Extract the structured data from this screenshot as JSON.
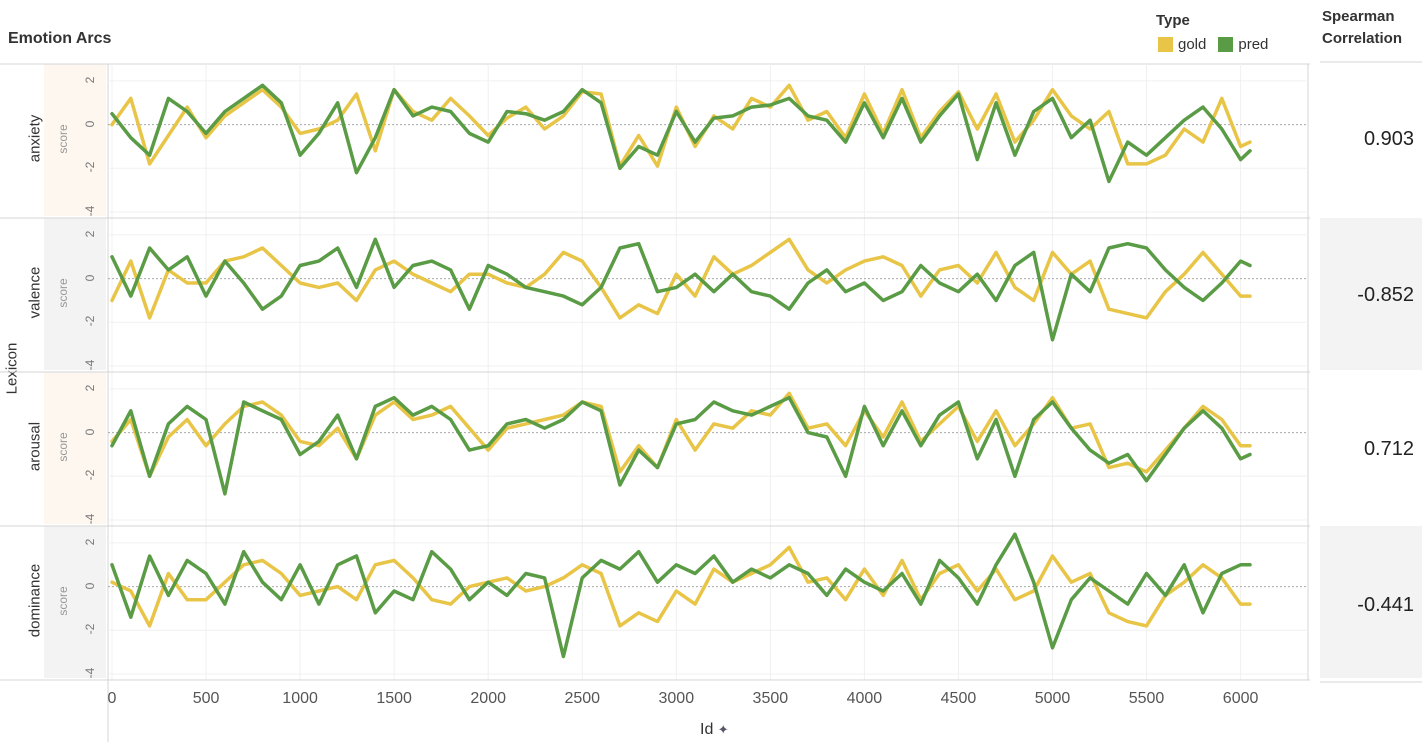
{
  "title": "Emotion Arcs",
  "legend": {
    "title": "Type",
    "items": [
      {
        "label": "gold",
        "color": "#e8c547"
      },
      {
        "label": "pred",
        "color": "#5a9b45"
      }
    ]
  },
  "correlation_header": "Spearman Correlation",
  "row_axis_label": "Lexicon",
  "y_axis_label": "score",
  "x_axis_label": "Id",
  "x_ticks": [
    "0",
    "500",
    "1000",
    "1500",
    "2000",
    "2500",
    "3000",
    "3500",
    "4000",
    "4500",
    "5000",
    "5500",
    "6000"
  ],
  "y_ticks": [
    "2",
    "0",
    "-2",
    "-4"
  ],
  "rows": [
    {
      "name": "anxiety",
      "correlation": "0.903"
    },
    {
      "name": "valence",
      "correlation": "-0.852"
    },
    {
      "name": "arousal",
      "correlation": "0.712"
    },
    {
      "name": "dominance",
      "correlation": "-0.441"
    }
  ],
  "chart_data": {
    "type": "line",
    "xlabel": "Id",
    "ylabel": "score",
    "xlim": [
      0,
      6050
    ],
    "ylim": [
      -4,
      2.5
    ],
    "grid": true,
    "legend_placement": "top-right",
    "facets": [
      "anxiety",
      "valence",
      "arousal",
      "dominance"
    ],
    "x": [
      0,
      100,
      200,
      300,
      400,
      500,
      600,
      700,
      800,
      900,
      1000,
      1100,
      1200,
      1300,
      1400,
      1500,
      1600,
      1700,
      1800,
      1900,
      2000,
      2100,
      2200,
      2300,
      2400,
      2500,
      2600,
      2700,
      2800,
      2900,
      3000,
      3100,
      3200,
      3300,
      3400,
      3500,
      3600,
      3700,
      3800,
      3900,
      4000,
      4100,
      4200,
      4300,
      4400,
      4500,
      4600,
      4700,
      4800,
      4900,
      5000,
      5100,
      5200,
      5300,
      5400,
      5500,
      5600,
      5700,
      5800,
      5900,
      6000,
      6050
    ],
    "series": [
      {
        "facet": "anxiety",
        "name": "gold",
        "values": [
          0,
          1.2,
          -1.8,
          -0.5,
          0.8,
          -0.6,
          0.4,
          1,
          1.6,
          0.8,
          -0.4,
          -0.2,
          0.2,
          1.4,
          -1.2,
          1.6,
          0.6,
          0.2,
          1.2,
          0.4,
          -0.5,
          0.3,
          0.8,
          -0.2,
          0.4,
          1.5,
          1.4,
          -1.9,
          -0.5,
          -1.9,
          0.8,
          -1,
          0.4,
          -0.2,
          1.2,
          0.8,
          1.8,
          0.2,
          0.6,
          -0.6,
          1.4,
          -0.4,
          1.6,
          -0.6,
          0.6,
          1.5,
          -0.2,
          1.4,
          -0.8,
          0.2,
          1.6,
          0.4,
          -0.2,
          0.6,
          -1.8,
          -1.8,
          -1.4,
          -0.2,
          -0.8,
          1.2,
          -1,
          -0.8
        ]
      },
      {
        "facet": "anxiety",
        "name": "pred",
        "values": [
          0.5,
          -0.6,
          -1.4,
          1.2,
          0.6,
          -0.4,
          0.6,
          1.2,
          1.8,
          1,
          -1.4,
          -0.4,
          1,
          -2.2,
          -0.6,
          1.6,
          0.4,
          0.8,
          0.6,
          -0.4,
          -0.8,
          0.6,
          0.5,
          0.2,
          0.6,
          1.6,
          1,
          -2,
          -1,
          -1.4,
          0.6,
          -0.8,
          0.3,
          0.4,
          0.8,
          0.9,
          1.2,
          0.4,
          0.2,
          -0.8,
          1,
          -0.6,
          1.2,
          -0.8,
          0.4,
          1.4,
          -1.6,
          1,
          -1.4,
          0.6,
          1.2,
          -0.6,
          0.2,
          -2.6,
          -0.8,
          -1.4,
          -0.6,
          0.2,
          0.8,
          -0.2,
          -1.6,
          -1.2
        ]
      },
      {
        "facet": "valence",
        "name": "gold",
        "values": [
          -1,
          0.8,
          -1.8,
          0.4,
          -0.2,
          -0.2,
          0.8,
          1,
          1.4,
          0.6,
          -0.2,
          -0.4,
          -0.2,
          -1,
          0.4,
          0.8,
          0.2,
          -0.2,
          -0.6,
          0.2,
          0.2,
          -0.2,
          -0.4,
          0.2,
          1.2,
          0.8,
          -0.4,
          -1.8,
          -1.2,
          -1.6,
          0.2,
          -0.8,
          1,
          0.2,
          0.6,
          1.2,
          1.8,
          0.4,
          -0.2,
          0.4,
          0.8,
          1,
          0.6,
          -0.8,
          0.4,
          0.6,
          -0.2,
          1.2,
          -0.4,
          -1,
          1.2,
          0.2,
          0.8,
          -1.4,
          -1.6,
          -1.8,
          -0.6,
          0.2,
          1.2,
          0.2,
          -0.8,
          -0.8
        ]
      },
      {
        "facet": "valence",
        "name": "pred",
        "values": [
          1,
          -0.8,
          1.4,
          0.4,
          1,
          -0.8,
          0.8,
          -0.2,
          -1.4,
          -0.8,
          0.6,
          0.8,
          1.4,
          -0.4,
          1.8,
          -0.4,
          0.6,
          0.8,
          0.4,
          -1.4,
          0.6,
          0.2,
          -0.4,
          -0.6,
          -0.8,
          -1.2,
          -0.4,
          1.4,
          1.6,
          -0.6,
          -0.4,
          0.2,
          -0.6,
          0.2,
          -0.6,
          -0.8,
          -1.4,
          -0.2,
          0.4,
          -0.6,
          -0.2,
          -1,
          -0.6,
          0.6,
          -0.2,
          -0.6,
          0.2,
          -1,
          0.6,
          1.2,
          -2.8,
          0.2,
          -0.6,
          1.4,
          1.6,
          1.4,
          0.4,
          -0.4,
          -1,
          -0.2,
          0.8,
          0.6
        ]
      },
      {
        "facet": "arousal",
        "name": "gold",
        "values": [
          -0.4,
          0.6,
          -2,
          -0.2,
          0.6,
          -0.6,
          0.4,
          1.2,
          1.4,
          0.8,
          -0.4,
          -0.6,
          0.2,
          -1.2,
          0.8,
          1.4,
          0.6,
          0.8,
          1.2,
          0.2,
          -0.8,
          0.2,
          0.4,
          0.6,
          0.8,
          1.4,
          1.2,
          -1.8,
          -0.6,
          -1.6,
          0.6,
          -0.8,
          0.4,
          0.2,
          1,
          0.8,
          1.8,
          0.2,
          0.4,
          -0.6,
          1,
          -0.2,
          1.4,
          -0.4,
          0.4,
          1.2,
          -0.4,
          1,
          -0.6,
          0.4,
          1.6,
          0.2,
          0.4,
          -1.6,
          -1.4,
          -1.8,
          -0.8,
          0.2,
          1.2,
          0.6,
          -0.6,
          -0.6
        ]
      },
      {
        "facet": "arousal",
        "name": "pred",
        "values": [
          -0.6,
          1,
          -2,
          0.4,
          1.2,
          0.6,
          -2.8,
          1.4,
          1,
          0.6,
          -1,
          -0.4,
          0.8,
          -1.2,
          1.2,
          1.6,
          0.8,
          1.2,
          0.6,
          -0.8,
          -0.6,
          0.4,
          0.6,
          0.2,
          0.6,
          1.4,
          1,
          -2.4,
          -0.8,
          -1.6,
          0.4,
          0.6,
          1.4,
          1,
          0.8,
          1.2,
          1.6,
          0,
          -0.2,
          -2,
          1.2,
          -0.6,
          1,
          -0.6,
          0.8,
          1.4,
          -1.2,
          0.6,
          -2,
          0.6,
          1.4,
          0.2,
          -0.8,
          -1.4,
          -1,
          -2.2,
          -1,
          0.2,
          1,
          0.2,
          -1.2,
          -1
        ]
      },
      {
        "facet": "dominance",
        "name": "gold",
        "values": [
          0.2,
          -0.2,
          -1.8,
          0.6,
          -0.6,
          -0.6,
          0.2,
          1,
          1.2,
          0.6,
          -0.4,
          -0.2,
          0,
          -0.6,
          1,
          1.2,
          0.4,
          -0.6,
          -0.8,
          0,
          0.2,
          0.4,
          -0.2,
          0,
          0.4,
          1,
          0.6,
          -1.8,
          -1.2,
          -1.6,
          -0.2,
          -0.8,
          0.8,
          0.2,
          0.6,
          1,
          1.8,
          0.2,
          0.4,
          -0.6,
          0.8,
          -0.4,
          1.2,
          -0.6,
          0.6,
          1,
          -0.2,
          0.8,
          -0.6,
          -0.2,
          1.4,
          0.2,
          0.6,
          -1.2,
          -1.6,
          -1.8,
          -0.4,
          0.2,
          1,
          0.4,
          -0.8,
          -0.8
        ]
      },
      {
        "facet": "dominance",
        "name": "pred",
        "values": [
          1,
          -1.4,
          1.4,
          -0.4,
          1.2,
          0.6,
          -0.8,
          1.6,
          0.2,
          -0.6,
          1,
          -0.8,
          1,
          1.4,
          -1.2,
          -0.2,
          -0.6,
          1.6,
          0.8,
          -0.6,
          0.2,
          -0.4,
          0.6,
          0.4,
          -3.2,
          0.4,
          1.2,
          0.8,
          1.6,
          0.2,
          1,
          0.6,
          1.4,
          0.2,
          0.8,
          0.4,
          1,
          0.6,
          -0.4,
          0.8,
          0.2,
          -0.2,
          0.6,
          -0.8,
          1.2,
          0.4,
          -0.8,
          1,
          2.4,
          0.2,
          -2.8,
          -0.6,
          0.4,
          -0.2,
          -0.8,
          0.6,
          -0.4,
          1,
          -1.2,
          0.6,
          1,
          1
        ]
      }
    ]
  }
}
